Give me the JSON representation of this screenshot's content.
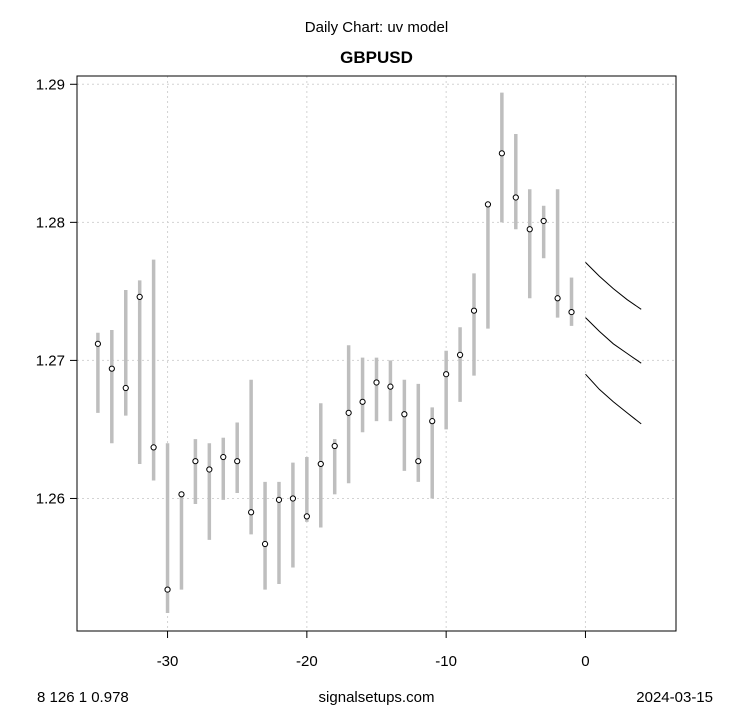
{
  "header": {
    "subtitle": "Daily Chart: uv model",
    "title": "GBPUSD"
  },
  "footer": {
    "left": "8 126 1 0.978",
    "center": "signalsetups.com",
    "right": "2024-03-15"
  },
  "colors": {
    "range_bar": "#bebebe",
    "forecast_line": "#000000",
    "grid": "#d3d3d3"
  },
  "chart_data": {
    "type": "line",
    "title": "GBPUSD",
    "subtitle": "Daily Chart: uv model",
    "xlim": [
      -36.5,
      6.5
    ],
    "ylim": [
      1.2504,
      1.2906
    ],
    "x_ticks": [
      -30,
      -20,
      -10,
      0
    ],
    "x_tick_labels": [
      "-30",
      "-20",
      "-10",
      "0"
    ],
    "y_ticks": [
      1.26,
      1.27,
      1.28,
      1.29
    ],
    "y_tick_labels": [
      "1.26",
      "1.27",
      "1.28",
      "1.29"
    ],
    "grid": true,
    "bars": [
      {
        "x": -35,
        "low": 1.2662,
        "high": 1.272,
        "close": 1.2712
      },
      {
        "x": -34,
        "low": 1.264,
        "high": 1.2722,
        "close": 1.2694
      },
      {
        "x": -33,
        "low": 1.266,
        "high": 1.2751,
        "close": 1.268
      },
      {
        "x": -32,
        "low": 1.2625,
        "high": 1.2758,
        "close": 1.2746
      },
      {
        "x": -31,
        "low": 1.2613,
        "high": 1.2773,
        "close": 1.2637
      },
      {
        "x": -30,
        "low": 1.2517,
        "high": 1.264,
        "close": 1.2534
      },
      {
        "x": -29,
        "low": 1.2534,
        "high": 1.2604,
        "close": 1.2603
      },
      {
        "x": -28,
        "low": 1.2596,
        "high": 1.2643,
        "close": 1.2627
      },
      {
        "x": -27,
        "low": 1.257,
        "high": 1.264,
        "close": 1.2621
      },
      {
        "x": -26,
        "low": 1.2599,
        "high": 1.2644,
        "close": 1.263
      },
      {
        "x": -25,
        "low": 1.2604,
        "high": 1.2655,
        "close": 1.2627
      },
      {
        "x": -24,
        "low": 1.2574,
        "high": 1.2686,
        "close": 1.259
      },
      {
        "x": -23,
        "low": 1.2534,
        "high": 1.2612,
        "close": 1.2567
      },
      {
        "x": -22,
        "low": 1.2538,
        "high": 1.2612,
        "close": 1.2599
      },
      {
        "x": -21,
        "low": 1.255,
        "high": 1.2626,
        "close": 1.26
      },
      {
        "x": -20,
        "low": 1.2583,
        "high": 1.263,
        "close": 1.2587
      },
      {
        "x": -19,
        "low": 1.2579,
        "high": 1.2669,
        "close": 1.2625
      },
      {
        "x": -18,
        "low": 1.2603,
        "high": 1.2643,
        "close": 1.2638
      },
      {
        "x": -17,
        "low": 1.2611,
        "high": 1.2711,
        "close": 1.2662
      },
      {
        "x": -16,
        "low": 1.2648,
        "high": 1.2702,
        "close": 1.267
      },
      {
        "x": -15,
        "low": 1.2656,
        "high": 1.2702,
        "close": 1.2684
      },
      {
        "x": -14,
        "low": 1.2656,
        "high": 1.27,
        "close": 1.2681
      },
      {
        "x": -13,
        "low": 1.262,
        "high": 1.2686,
        "close": 1.2661
      },
      {
        "x": -12,
        "low": 1.2612,
        "high": 1.2683,
        "close": 1.2627
      },
      {
        "x": -11,
        "low": 1.26,
        "high": 1.2666,
        "close": 1.2656
      },
      {
        "x": -10,
        "low": 1.265,
        "high": 1.2707,
        "close": 1.269
      },
      {
        "x": -9,
        "low": 1.267,
        "high": 1.2724,
        "close": 1.2704
      },
      {
        "x": -8,
        "low": 1.2689,
        "high": 1.2763,
        "close": 1.2736
      },
      {
        "x": -7,
        "low": 1.2723,
        "high": 1.2815,
        "close": 1.2813
      },
      {
        "x": -6,
        "low": 1.28,
        "high": 1.2894,
        "close": 1.285
      },
      {
        "x": -5,
        "low": 1.2795,
        "high": 1.2864,
        "close": 1.2818
      },
      {
        "x": -4,
        "low": 1.2745,
        "high": 1.2824,
        "close": 1.2795
      },
      {
        "x": -3,
        "low": 1.2774,
        "high": 1.2812,
        "close": 1.2801
      },
      {
        "x": -2,
        "low": 1.2731,
        "high": 1.2824,
        "close": 1.2745
      },
      {
        "x": -1,
        "low": 1.2725,
        "high": 1.276,
        "close": 1.2735
      }
    ],
    "forecast_lines": [
      {
        "x": [
          0,
          1,
          2,
          3,
          4
        ],
        "y": [
          1.2771,
          1.2761,
          1.2752,
          1.2744,
          1.2737
        ]
      },
      {
        "x": [
          0,
          1,
          2,
          3,
          4
        ],
        "y": [
          1.2731,
          1.2721,
          1.2712,
          1.2705,
          1.2698
        ]
      },
      {
        "x": [
          0,
          1,
          2,
          3,
          4
        ],
        "y": [
          1.269,
          1.2679,
          1.267,
          1.2662,
          1.2654
        ]
      }
    ]
  }
}
